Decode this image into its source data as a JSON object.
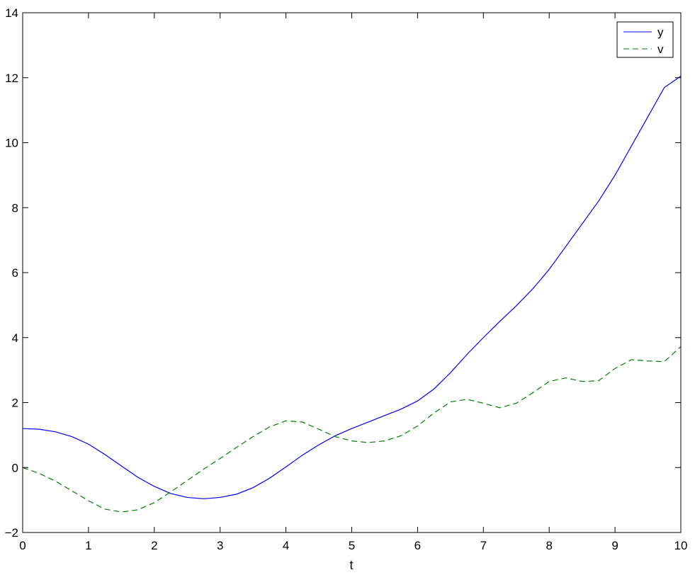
{
  "chart_data": {
    "type": "line",
    "title": "",
    "xlabel": "t",
    "ylabel": "",
    "xlim": [
      0,
      10
    ],
    "ylim": [
      -2,
      14
    ],
    "xticks": [
      0,
      1,
      2,
      3,
      4,
      5,
      6,
      7,
      8,
      9,
      10
    ],
    "yticks": [
      -2,
      0,
      2,
      4,
      6,
      8,
      10,
      12,
      14
    ],
    "ytick_labels": [
      "−2",
      "0",
      "2",
      "4",
      "6",
      "8",
      "10",
      "12",
      "14"
    ],
    "grid": false,
    "legend_position": "top-right",
    "series": [
      {
        "name": "y",
        "color": "#0000ff",
        "style": "solid",
        "x": [
          0,
          0.25,
          0.5,
          0.75,
          1.0,
          1.25,
          1.5,
          1.75,
          2.0,
          2.25,
          2.5,
          2.75,
          3.0,
          3.25,
          3.5,
          3.75,
          4.0,
          4.25,
          4.5,
          4.75,
          5.0,
          5.25,
          5.5,
          5.75,
          6.0,
          6.25,
          6.5,
          6.75,
          7.0,
          7.25,
          7.5,
          7.75,
          8.0,
          8.25,
          8.5,
          8.75,
          9.0,
          9.25,
          9.5,
          9.75,
          10.0
        ],
        "values": [
          1.2,
          1.18,
          1.1,
          0.95,
          0.72,
          0.4,
          0.05,
          -0.3,
          -0.58,
          -0.8,
          -0.92,
          -0.96,
          -0.92,
          -0.82,
          -0.62,
          -0.33,
          0.02,
          0.38,
          0.7,
          0.98,
          1.2,
          1.4,
          1.6,
          1.8,
          2.05,
          2.42,
          2.92,
          3.48,
          4.0,
          4.5,
          4.98,
          5.5,
          6.1,
          6.8,
          7.5,
          8.2,
          9.0,
          9.9,
          10.8,
          11.7,
          12.05
        ]
      },
      {
        "name": "v",
        "color": "#007f00",
        "style": "dashed",
        "x": [
          0,
          0.25,
          0.5,
          0.75,
          1.0,
          1.25,
          1.5,
          1.75,
          2.0,
          2.25,
          2.5,
          2.75,
          3.0,
          3.25,
          3.5,
          3.75,
          4.0,
          4.25,
          4.5,
          4.75,
          5.0,
          5.25,
          5.5,
          5.75,
          6.0,
          6.25,
          6.5,
          6.75,
          7.0,
          7.25,
          7.5,
          7.75,
          8.0,
          8.25,
          8.5,
          8.75,
          9.0,
          9.25,
          9.5,
          9.75,
          10.0
        ],
        "values": [
          0.0,
          -0.18,
          -0.42,
          -0.72,
          -1.02,
          -1.28,
          -1.37,
          -1.3,
          -1.08,
          -0.75,
          -0.4,
          -0.05,
          0.28,
          0.62,
          0.95,
          1.25,
          1.44,
          1.4,
          1.18,
          0.95,
          0.82,
          0.77,
          0.82,
          0.98,
          1.28,
          1.68,
          2.02,
          2.1,
          1.98,
          1.84,
          1.98,
          2.3,
          2.65,
          2.76,
          2.65,
          2.67,
          3.05,
          3.32,
          3.28,
          3.26,
          3.72
        ]
      }
    ]
  }
}
